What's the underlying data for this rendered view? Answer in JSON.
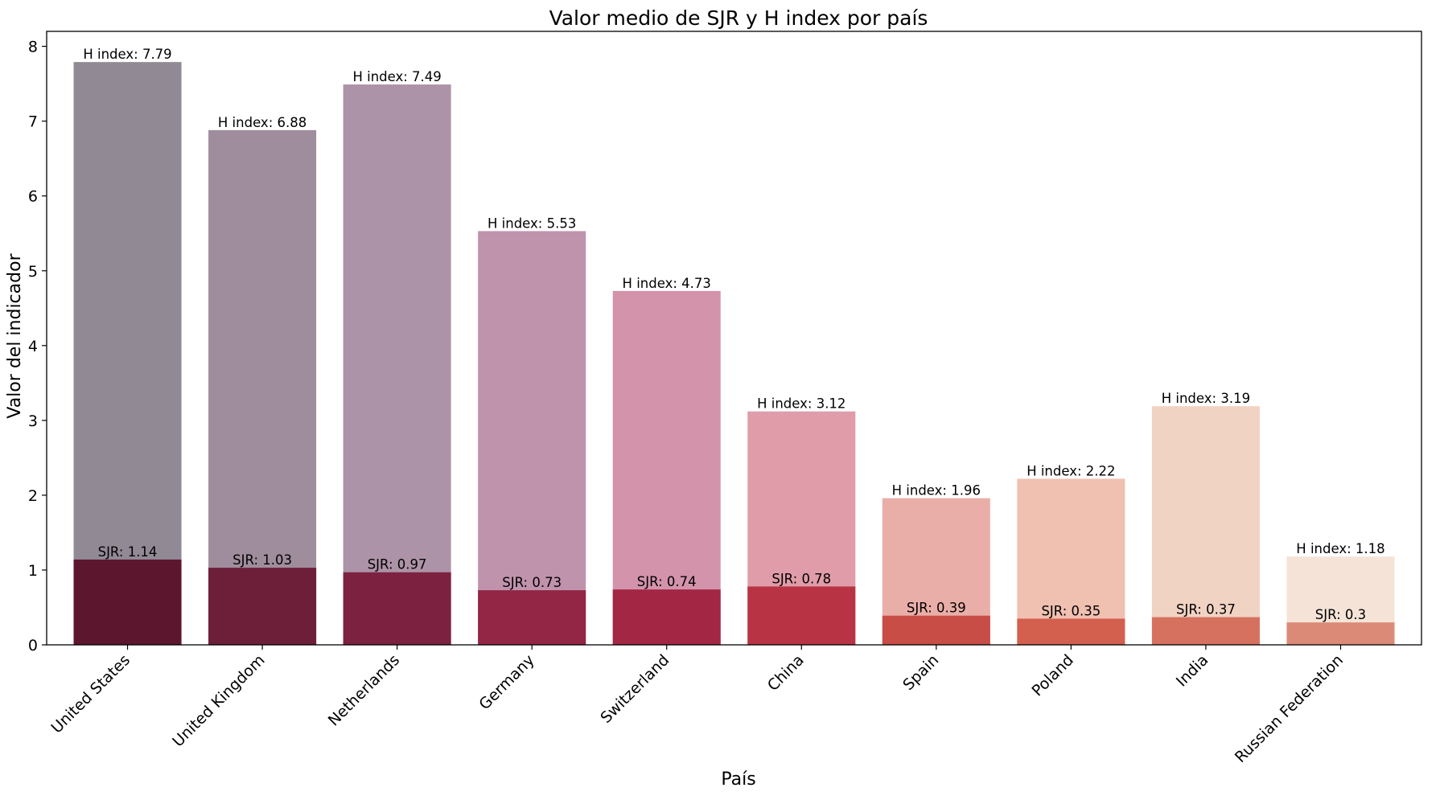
{
  "chart_data": {
    "type": "bar",
    "title": "Valor medio de SJR y H index por país",
    "xlabel": "País",
    "ylabel": "Valor del indicador",
    "ylim": [
      0,
      8.2
    ],
    "yticks": [
      "0",
      "1",
      "2",
      "3",
      "4",
      "5",
      "6",
      "7",
      "8"
    ],
    "grid": false,
    "legend": "none",
    "categories": [
      "United States",
      "United Kingdom",
      "Netherlands",
      "Germany",
      "Switzerland",
      "China",
      "Spain",
      "Poland",
      "India",
      "Russian Federation"
    ],
    "series": [
      {
        "values": [
          7.79,
          6.88,
          7.49,
          5.53,
          4.73,
          3.12,
          1.96,
          2.22,
          3.19,
          1.18
        ],
        "labels": [
          "H index: 7.79",
          "H index: 6.88",
          "H index: 7.49",
          "H index: 5.53",
          "H index: 4.73",
          "H index: 3.12",
          "H index: 1.96",
          "H index: 2.22",
          "H index: 3.19",
          "H index: 1.18"
        ],
        "colors": [
          "#918a95",
          "#9f8d9d",
          "#ad93a7",
          "#c093ad",
          "#d393ab",
          "#e09ca8",
          "#eaaea8",
          "#f0c0b1",
          "#f1d3c3",
          "#f6e3d7"
        ]
      },
      {
        "values": [
          1.14,
          1.03,
          0.97,
          0.73,
          0.74,
          0.78,
          0.39,
          0.35,
          0.37,
          0.3
        ],
        "labels": [
          "SJR: 1.14",
          "SJR: 1.03",
          "SJR: 0.97",
          "SJR: 0.73",
          "SJR: 0.74",
          "SJR: 0.78",
          "SJR: 0.39",
          "SJR: 0.35",
          "SJR: 0.37",
          "SJR: 0.3"
        ],
        "colors": [
          "#5c172f",
          "#6d1e39",
          "#7d2140",
          "#922644",
          "#a32645",
          "#b83445",
          "#c84d47",
          "#d35f4f",
          "#d6715f",
          "#dc8a78"
        ]
      }
    ]
  }
}
